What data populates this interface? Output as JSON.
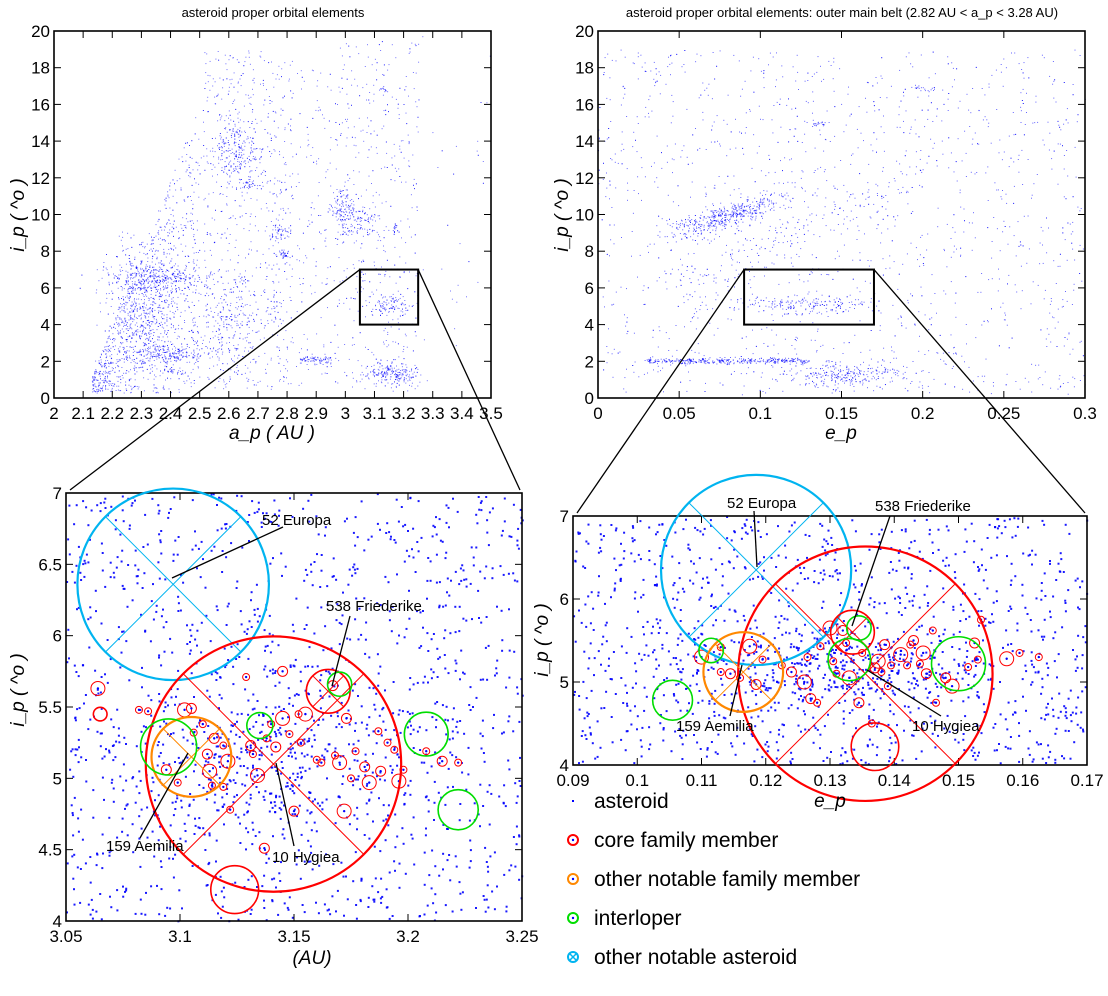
{
  "chart_data": [
    {
      "id": "overview_a_i",
      "type": "scatter",
      "title": "asteroid proper orbital elements",
      "xlabel": "a_p ( AU )",
      "ylabel": "i_p ( ^o )",
      "xlim": [
        2,
        3.5
      ],
      "ylim": [
        0,
        20
      ],
      "xticks": [
        "2",
        "2.1",
        "2.2",
        "2.3",
        "2.4",
        "2.5",
        "2.6",
        "2.7",
        "2.8",
        "2.9",
        "3",
        "3.1",
        "3.2",
        "3.3",
        "3.4",
        "3.5"
      ],
      "yticks": [
        "0",
        "2",
        "4",
        "6",
        "8",
        "10",
        "12",
        "14",
        "16",
        "18",
        "20"
      ],
      "point_color": "#0000ff",
      "zoom_box": {
        "x": [
          3.05,
          3.25
        ],
        "y": [
          4,
          7
        ]
      }
    },
    {
      "id": "outer_e_i",
      "type": "scatter",
      "title": "asteroid proper orbital elements: outer main belt (2.82 AU < a_p < 3.28 AU)",
      "xlabel": "e_p",
      "ylabel": "i_p ( ^o )",
      "xlim": [
        0,
        0.3
      ],
      "ylim": [
        0,
        20
      ],
      "xticks": [
        "0",
        "0.05",
        "0.1",
        "0.15",
        "0.2",
        "0.25",
        "0.3"
      ],
      "yticks": [
        "0",
        "2",
        "4",
        "6",
        "8",
        "10",
        "12",
        "14",
        "16",
        "18",
        "20"
      ],
      "point_color": "#0000ff",
      "zoom_box": {
        "x": [
          0.09,
          0.17
        ],
        "y": [
          4,
          7
        ]
      }
    },
    {
      "id": "zoom_a_i",
      "type": "scatter",
      "xlabel": "(AU)",
      "ylabel": "i_p ( ^o )",
      "xlim": [
        3.05,
        3.25
      ],
      "ylim": [
        4,
        7
      ],
      "xticks": [
        "3.05",
        "3.1",
        "3.15",
        "3.2",
        "3.25"
      ],
      "yticks": [
        "4",
        "4.5",
        "5",
        "5.5",
        "6",
        "6.5",
        "7"
      ],
      "notable": [
        {
          "name": "52 Europa",
          "kind": "other",
          "x": 3.097,
          "y": 6.36,
          "r": 0.042,
          "cross": true
        },
        {
          "name": "10 Hygiea",
          "kind": "core",
          "x": 3.141,
          "y": 5.1,
          "r": 0.056,
          "cross": true
        },
        {
          "name": "538 Friederike",
          "kind": "core",
          "x": 3.165,
          "y": 5.61,
          "r": 0.0096,
          "cross": true
        },
        {
          "name": "159 Aemilia",
          "kind": "notable",
          "x": 3.105,
          "y": 5.15,
          "r": 0.0175,
          "cross": true
        },
        {
          "kind": "interloper",
          "x": 3.095,
          "y": 5.22,
          "r": 0.0123
        },
        {
          "kind": "interloper",
          "x": 3.135,
          "y": 5.37,
          "r": 0.0057
        },
        {
          "kind": "interloper",
          "x": 3.17,
          "y": 5.66,
          "r": 0.0053
        },
        {
          "kind": "interloper",
          "x": 3.208,
          "y": 5.31,
          "r": 0.0096
        },
        {
          "kind": "interloper",
          "x": 3.222,
          "y": 4.78,
          "r": 0.0088
        },
        {
          "kind": "core",
          "x": 3.124,
          "y": 4.22,
          "r": 0.0105
        },
        {
          "kind": "core",
          "x": 3.065,
          "y": 5.45,
          "r": 0.003
        }
      ],
      "core_members": [
        [
          3.064,
          5.63
        ],
        [
          3.082,
          5.48
        ],
        [
          3.086,
          5.47
        ],
        [
          3.094,
          5.06
        ],
        [
          3.099,
          4.97
        ],
        [
          3.102,
          5.48
        ],
        [
          3.105,
          5.49
        ],
        [
          3.106,
          5.32
        ],
        [
          3.11,
          5.38
        ],
        [
          3.112,
          5.17
        ],
        [
          3.113,
          5.05
        ],
        [
          3.114,
          4.95
        ],
        [
          3.115,
          5.28
        ],
        [
          3.119,
          5.23
        ],
        [
          3.119,
          4.94
        ],
        [
          3.121,
          5.12
        ],
        [
          3.122,
          4.78
        ],
        [
          3.129,
          5.71
        ],
        [
          3.131,
          5.23
        ],
        [
          3.132,
          5.17
        ],
        [
          3.134,
          5.02
        ],
        [
          3.137,
          4.51
        ],
        [
          3.138,
          5.28
        ],
        [
          3.14,
          5.38
        ],
        [
          3.142,
          5.22
        ],
        [
          3.145,
          5.42
        ],
        [
          3.148,
          5.31
        ],
        [
          3.15,
          4.77
        ],
        [
          3.152,
          5.45
        ],
        [
          3.153,
          5.25
        ],
        [
          3.155,
          5.45
        ],
        [
          3.16,
          5.13
        ],
        [
          3.162,
          5.11
        ],
        [
          3.167,
          5.65
        ],
        [
          3.168,
          5.16
        ],
        [
          3.17,
          5.11
        ],
        [
          3.173,
          5.42
        ],
        [
          3.175,
          5.0
        ],
        [
          3.177,
          5.19
        ],
        [
          3.181,
          5.08
        ],
        [
          3.183,
          4.97
        ],
        [
          3.187,
          5.33
        ],
        [
          3.188,
          5.05
        ],
        [
          3.191,
          5.25
        ],
        [
          3.194,
          5.2
        ],
        [
          3.196,
          4.98
        ],
        [
          3.198,
          5.06
        ],
        [
          3.208,
          5.19
        ],
        [
          3.215,
          5.12
        ],
        [
          3.222,
          5.11
        ],
        [
          3.172,
          4.77
        ],
        [
          3.145,
          5.75
        ]
      ],
      "annotations": [
        "52 Europa",
        "538 Friederike",
        "159 Aemilia",
        "10 Hygiea"
      ]
    },
    {
      "id": "zoom_e_i",
      "type": "scatter",
      "xlabel": "e_p",
      "ylabel": "i_p ( ^o )",
      "xlim": [
        0.09,
        0.17
      ],
      "ylim": [
        4,
        7
      ],
      "xticks": [
        "0.09",
        "0.1",
        "0.11",
        "0.12",
        "0.13",
        "0.14",
        "0.15",
        "0.16",
        "0.17"
      ],
      "yticks": [
        "4",
        "5",
        "6",
        "7"
      ],
      "notable": [
        {
          "name": "52 Europa",
          "kind": "other",
          "x": 0.1185,
          "y": 6.35,
          "r": 0.0148,
          "cross": true
        },
        {
          "name": "10 Hygiea",
          "kind": "core",
          "x": 0.1355,
          "y": 5.1,
          "r": 0.0198,
          "cross": true
        },
        {
          "name": "538 Friederike",
          "kind": "core",
          "x": 0.1335,
          "y": 5.6,
          "r": 0.0034,
          "cross": true
        },
        {
          "name": "159 Aemilia",
          "kind": "notable",
          "x": 0.1165,
          "y": 5.12,
          "r": 0.0062,
          "cross": true
        },
        {
          "kind": "interloper",
          "x": 0.1345,
          "y": 5.65,
          "r": 0.0019
        },
        {
          "kind": "interloper",
          "x": 0.133,
          "y": 5.27,
          "r": 0.0033
        },
        {
          "kind": "interloper",
          "x": 0.1115,
          "y": 5.38,
          "r": 0.0019
        },
        {
          "kind": "interloper",
          "x": 0.1055,
          "y": 4.78,
          "r": 0.0031
        },
        {
          "kind": "interloper",
          "x": 0.15,
          "y": 5.22,
          "r": 0.0042
        },
        {
          "kind": "core",
          "x": 0.137,
          "y": 4.22,
          "r": 0.0037
        }
      ],
      "core_members": [
        [
          0.11,
          5.3
        ],
        [
          0.113,
          5.42
        ],
        [
          0.113,
          5.12
        ],
        [
          0.1145,
          5.1
        ],
        [
          0.116,
          5.05
        ],
        [
          0.1175,
          5.43
        ],
        [
          0.1185,
          4.97
        ],
        [
          0.1195,
          5.27
        ],
        [
          0.1225,
          5.2
        ],
        [
          0.124,
          5.12
        ],
        [
          0.126,
          5.0
        ],
        [
          0.1265,
          5.3
        ],
        [
          0.127,
          4.8
        ],
        [
          0.128,
          4.75
        ],
        [
          0.1285,
          5.43
        ],
        [
          0.13,
          5.65
        ],
        [
          0.1305,
          5.25
        ],
        [
          0.131,
          5.1
        ],
        [
          0.132,
          5.62
        ],
        [
          0.1325,
          5.47
        ],
        [
          0.133,
          5.05
        ],
        [
          0.1345,
          4.75
        ],
        [
          0.135,
          5.35
        ],
        [
          0.1365,
          4.5
        ],
        [
          0.137,
          5.17
        ],
        [
          0.1375,
          5.25
        ],
        [
          0.138,
          5.12
        ],
        [
          0.1385,
          5.45
        ],
        [
          0.139,
          4.95
        ],
        [
          0.1395,
          5.2
        ],
        [
          0.141,
          5.33
        ],
        [
          0.142,
          5.2
        ],
        [
          0.1425,
          5.45
        ],
        [
          0.143,
          5.5
        ],
        [
          0.144,
          5.22
        ],
        [
          0.1445,
          5.35
        ],
        [
          0.145,
          5.1
        ],
        [
          0.146,
          5.62
        ],
        [
          0.1465,
          4.75
        ],
        [
          0.148,
          5.05
        ],
        [
          0.149,
          4.95
        ],
        [
          0.1515,
          5.18
        ],
        [
          0.1525,
          5.47
        ],
        [
          0.153,
          5.27
        ],
        [
          0.1535,
          5.75
        ],
        [
          0.1575,
          5.28
        ],
        [
          0.1595,
          5.35
        ],
        [
          0.1625,
          5.3
        ]
      ],
      "annotations": [
        "52 Europa",
        "538 Friederike",
        "159 Aemilia",
        "10 Hygiea"
      ]
    }
  ],
  "legend": {
    "placement": "bottom-right",
    "items": [
      {
        "label": "asteroid",
        "kind": "asteroid"
      },
      {
        "label": "core family member",
        "kind": "core"
      },
      {
        "label": "other notable family member",
        "kind": "notable"
      },
      {
        "label": "interloper",
        "kind": "interloper"
      },
      {
        "label": "other notable asteroid",
        "kind": "other"
      }
    ]
  },
  "colors": {
    "asteroid": "#0000ff",
    "core": "#ff0000",
    "notable": "#ff8800",
    "interloper": "#00dd00",
    "other": "#00b4f0"
  }
}
